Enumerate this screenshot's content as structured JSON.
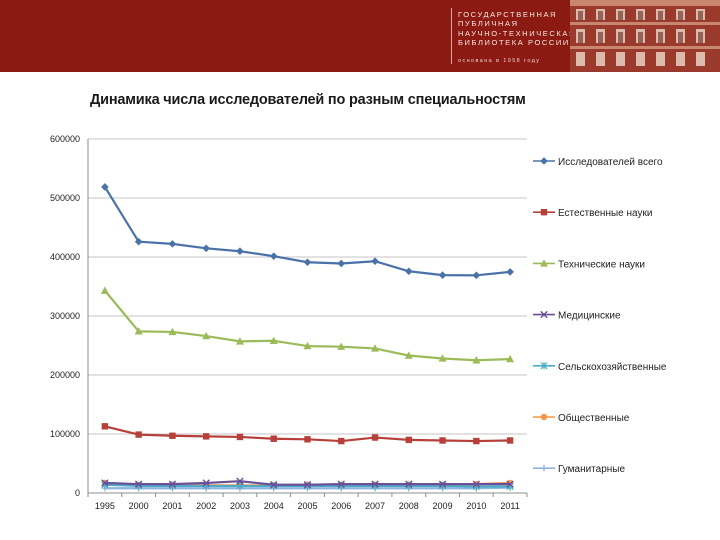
{
  "header": {
    "library_name_lines": [
      "ГОСУДАРСТВЕННАЯ",
      "ПУБЛИЧНАЯ",
      "НАУЧНО-ТЕХНИЧЕСКАЯ",
      "БИБЛИОТЕКА РОССИИ"
    ],
    "since_line": "основана в 1958 году",
    "banner_color": "#8b1a12"
  },
  "chart_data": {
    "type": "line",
    "title": "Динамика числа исследователей по  разным специальностям",
    "xlabel": "",
    "ylabel": "",
    "categories": [
      "1995",
      "2000",
      "2001",
      "2002",
      "2003",
      "2004",
      "2005",
      "2006",
      "2007",
      "2008",
      "2009",
      "2010",
      "2011"
    ],
    "ylim": [
      0,
      600000
    ],
    "yticks": [
      "0",
      "100000",
      "200000",
      "300000",
      "400000",
      "500000",
      "600000"
    ],
    "grid": true,
    "legend_position": "right",
    "series": [
      {
        "name": "Исследователей всего",
        "color": "#4a72a8",
        "marker": "diamond",
        "values": [
          518690,
          425954,
          422230,
          414676,
          409775,
          401425,
          391121,
          388939,
          392849,
          375804,
          369237,
          368915,
          374746
        ]
      },
      {
        "name": "Естественные науки",
        "color": "#b7403a",
        "marker": "square",
        "values": [
          113000,
          99000,
          97000,
          96000,
          95000,
          92000,
          91000,
          88000,
          94000,
          90000,
          89000,
          88000,
          89000
        ]
      },
      {
        "name": "Технические науки",
        "color": "#9bbb59",
        "marker": "triangle",
        "values": [
          343000,
          274000,
          273000,
          266000,
          257000,
          258000,
          249000,
          248000,
          245000,
          233000,
          228000,
          225000,
          227000
        ]
      },
      {
        "name": "Медицинские",
        "color": "#6b4f98",
        "marker": "x",
        "values": [
          17000,
          15000,
          15000,
          17000,
          20000,
          14000,
          14000,
          15000,
          15000,
          15000,
          15000,
          15000,
          15000
        ]
      },
      {
        "name": "Сельскохозяйственные",
        "color": "#4bacc6",
        "marker": "star",
        "values": [
          14000,
          12000,
          12000,
          12000,
          12000,
          12000,
          12000,
          12000,
          12000,
          12000,
          12000,
          11000,
          11000
        ]
      },
      {
        "name": "Общественные",
        "color": "#f79646",
        "marker": "circle",
        "values": [
          17000,
          14000,
          14000,
          13000,
          13000,
          13000,
          14000,
          14000,
          14000,
          14000,
          14000,
          15000,
          17000
        ]
      },
      {
        "name": "Гуманитарные",
        "color": "#8eb4e3",
        "marker": "plus",
        "values": [
          8000,
          8000,
          8000,
          8000,
          8000,
          8000,
          8000,
          8000,
          8000,
          8000,
          8000,
          8000,
          9000
        ]
      }
    ]
  }
}
